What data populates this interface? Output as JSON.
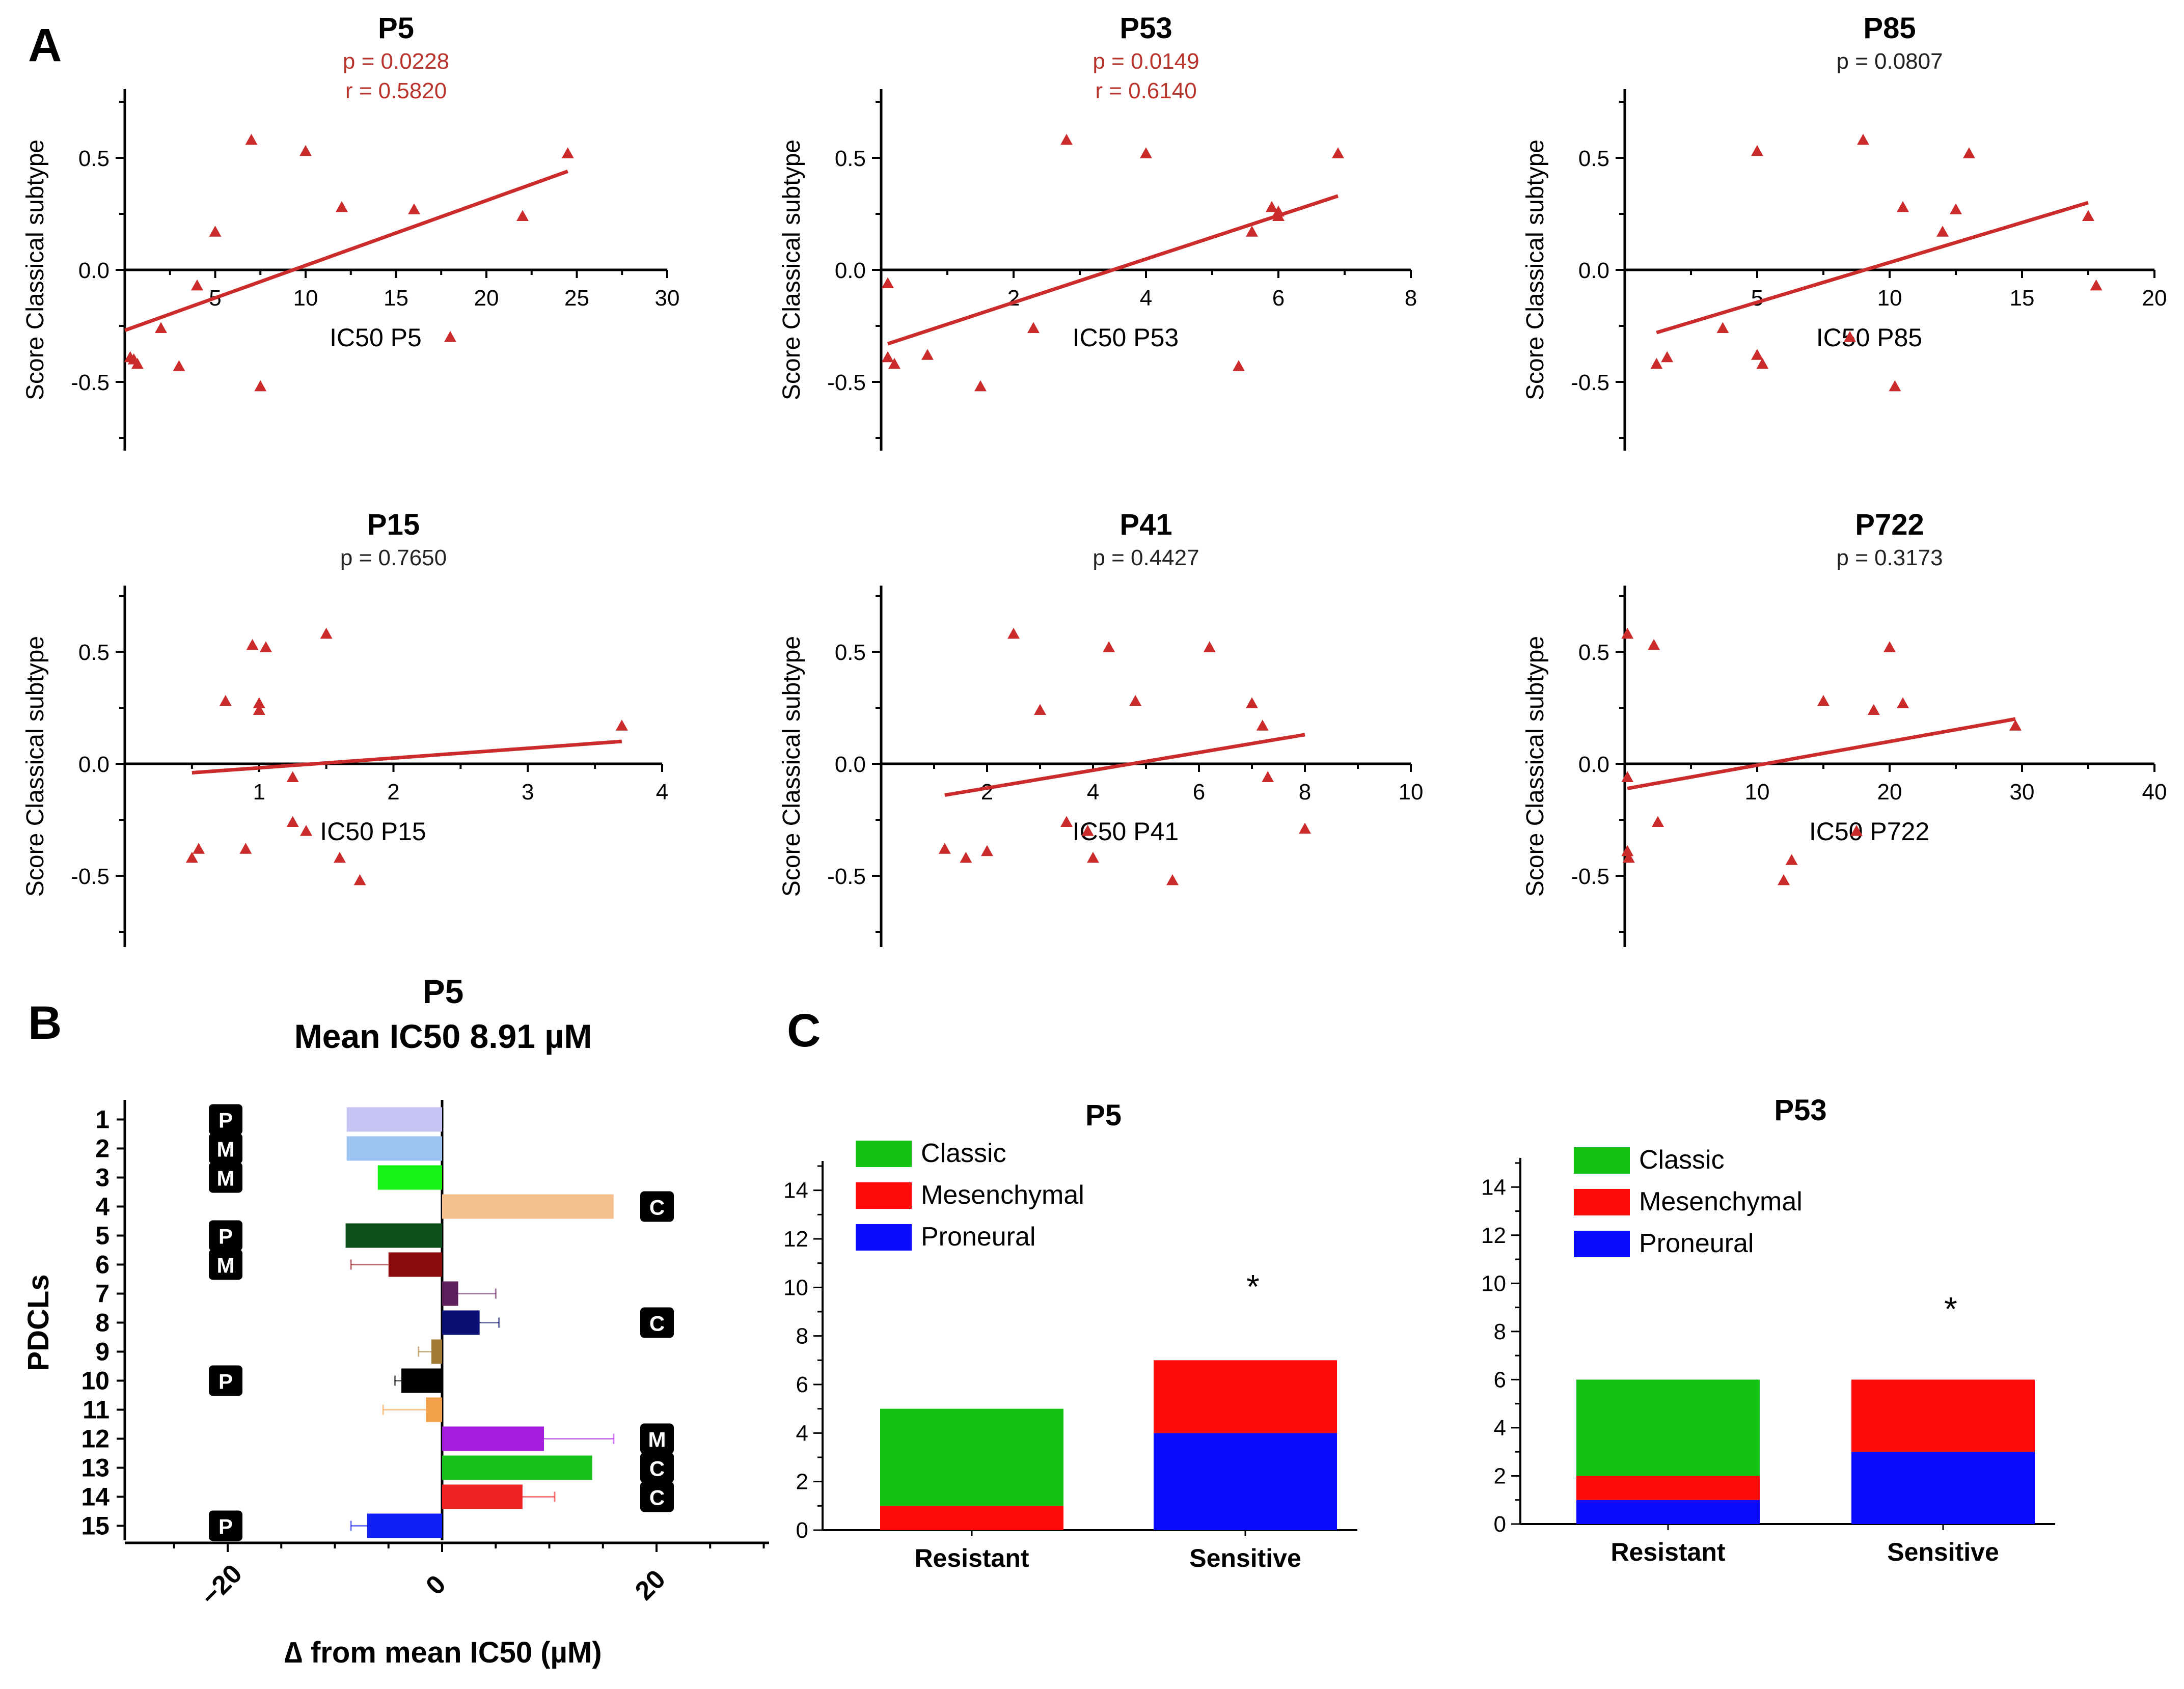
{
  "panel_labels": {
    "a": "A",
    "b": "B",
    "c": "C"
  },
  "colors": {
    "red": "#cc2b2b",
    "stat_red": "#b8342c",
    "stat_black": "#222222",
    "axis": "#000000",
    "classic": "#13c313",
    "mesenchymal": "#ff0a0a",
    "proneural": "#0a0aff"
  },
  "chart_data": [
    {
      "id": "a1",
      "type": "scatter",
      "title": "P5",
      "stats": [
        "p = 0.0228",
        "r = 0.5820"
      ],
      "stats_significant": true,
      "xlabel": "IC50 P5",
      "ylabel": "Score Classical subtype",
      "xlim": [
        0,
        30
      ],
      "ylim": [
        -0.8,
        0.8
      ],
      "xticks": [
        5,
        10,
        15,
        20,
        25,
        30
      ],
      "yticks": [
        0.5,
        0.0,
        -0.5
      ],
      "yticklabels": [
        "0.5",
        "0.0",
        "-0.5"
      ],
      "points": [
        [
          0.3,
          -0.39
        ],
        [
          0.5,
          -0.4
        ],
        [
          0.7,
          -0.42
        ],
        [
          2,
          -0.26
        ],
        [
          3,
          -0.43
        ],
        [
          4,
          -0.07
        ],
        [
          5,
          0.17
        ],
        [
          7,
          0.58
        ],
        [
          7.5,
          -0.52
        ],
        [
          10,
          0.53
        ],
        [
          12,
          0.28
        ],
        [
          16,
          0.27
        ],
        [
          18,
          -0.3
        ],
        [
          22,
          0.24
        ],
        [
          24.5,
          0.52
        ]
      ],
      "fit": [
        [
          0,
          -0.27
        ],
        [
          24.5,
          0.44
        ]
      ]
    },
    {
      "id": "a2",
      "type": "scatter",
      "title": "P53",
      "stats": [
        "p = 0.0149",
        "r = 0.6140"
      ],
      "stats_significant": true,
      "xlabel": "IC50 P53",
      "ylabel": "Score Classical subtype",
      "xlim": [
        0,
        8
      ],
      "ylim": [
        -0.8,
        0.8
      ],
      "xticks": [
        2,
        4,
        6,
        8
      ],
      "yticks": [
        0.5,
        0.0,
        -0.5
      ],
      "yticklabels": [
        "0.5",
        "0.0",
        "-0.5"
      ],
      "points": [
        [
          0.1,
          -0.06
        ],
        [
          0.1,
          -0.39
        ],
        [
          0.2,
          -0.42
        ],
        [
          0.7,
          -0.38
        ],
        [
          1.5,
          -0.52
        ],
        [
          2.3,
          -0.26
        ],
        [
          2.8,
          0.58
        ],
        [
          4,
          0.52
        ],
        [
          5.4,
          -0.43
        ],
        [
          5.6,
          0.17
        ],
        [
          5.9,
          0.28
        ],
        [
          6,
          0.26
        ],
        [
          6,
          0.24
        ],
        [
          6.9,
          0.52
        ]
      ],
      "fit": [
        [
          0.1,
          -0.33
        ],
        [
          6.9,
          0.33
        ]
      ]
    },
    {
      "id": "a3",
      "type": "scatter",
      "title": "P85",
      "stats": [
        "p = 0.0807"
      ],
      "stats_significant": false,
      "xlabel": "IC50 P85",
      "ylabel": "Score Classical subtype",
      "xlim": [
        0,
        20
      ],
      "ylim": [
        -0.8,
        0.8
      ],
      "xticks": [
        5,
        10,
        15,
        20
      ],
      "yticks": [
        0.5,
        0.0,
        -0.5
      ],
      "yticklabels": [
        "0.5",
        "0.0",
        "-0.5"
      ],
      "points": [
        [
          1.2,
          -0.42
        ],
        [
          1.6,
          -0.39
        ],
        [
          3.7,
          -0.26
        ],
        [
          5,
          0.53
        ],
        [
          5,
          -0.38
        ],
        [
          5.2,
          -0.42
        ],
        [
          8.5,
          -0.3
        ],
        [
          9,
          0.58
        ],
        [
          10.2,
          -0.52
        ],
        [
          10.5,
          0.28
        ],
        [
          12,
          0.17
        ],
        [
          12.5,
          0.27
        ],
        [
          13,
          0.52
        ],
        [
          17.5,
          0.24
        ],
        [
          17.8,
          -0.07
        ]
      ],
      "fit": [
        [
          1.2,
          -0.28
        ],
        [
          17.5,
          0.3
        ]
      ]
    },
    {
      "id": "a4",
      "type": "scatter",
      "title": "P15",
      "stats": [
        "p = 0.7650"
      ],
      "stats_significant": false,
      "xlabel": "IC50 P15",
      "ylabel": "Score Classical subtype",
      "xlim": [
        0,
        4
      ],
      "ylim": [
        -0.8,
        0.8
      ],
      "xticks": [
        1,
        2,
        3,
        4
      ],
      "yticks": [
        0.5,
        0.0,
        -0.5
      ],
      "yticklabels": [
        "0.5",
        "0.0",
        "-0.5"
      ],
      "points": [
        [
          0.5,
          -0.42
        ],
        [
          0.55,
          -0.38
        ],
        [
          0.75,
          0.28
        ],
        [
          0.9,
          -0.38
        ],
        [
          0.95,
          0.53
        ],
        [
          1,
          0.27
        ],
        [
          1,
          0.24
        ],
        [
          1.05,
          0.52
        ],
        [
          1.25,
          -0.06
        ],
        [
          1.25,
          -0.26
        ],
        [
          1.35,
          -0.3
        ],
        [
          1.5,
          0.58
        ],
        [
          1.6,
          -0.42
        ],
        [
          1.75,
          -0.52
        ],
        [
          3.7,
          0.17
        ]
      ],
      "fit": [
        [
          0.5,
          -0.04
        ],
        [
          3.7,
          0.1
        ]
      ]
    },
    {
      "id": "a5",
      "type": "scatter",
      "title": "P41",
      "stats": [
        "p = 0.4427"
      ],
      "stats_significant": false,
      "xlabel": "IC50 P41",
      "ylabel": "Score Classical subtype",
      "xlim": [
        0,
        10
      ],
      "ylim": [
        -0.8,
        0.8
      ],
      "xticks": [
        2,
        4,
        6,
        8,
        10
      ],
      "yticks": [
        0.5,
        0.0,
        -0.5
      ],
      "yticklabels": [
        "0.5",
        "0.0",
        "-0.5"
      ],
      "points": [
        [
          1.2,
          -0.38
        ],
        [
          1.6,
          -0.42
        ],
        [
          2,
          -0.39
        ],
        [
          2.5,
          0.58
        ],
        [
          3,
          0.24
        ],
        [
          3.5,
          -0.26
        ],
        [
          3.9,
          -0.3
        ],
        [
          4,
          -0.42
        ],
        [
          4.3,
          0.52
        ],
        [
          4.8,
          0.28
        ],
        [
          5.5,
          -0.52
        ],
        [
          6.2,
          0.52
        ],
        [
          7,
          0.27
        ],
        [
          7.2,
          0.17
        ],
        [
          7.3,
          -0.06
        ],
        [
          8,
          -0.29
        ]
      ],
      "fit": [
        [
          1.2,
          -0.14
        ],
        [
          8,
          0.13
        ]
      ]
    },
    {
      "id": "a6",
      "type": "scatter",
      "title": "P722",
      "stats": [
        "p = 0.3173"
      ],
      "stats_significant": false,
      "xlabel": "IC50 P722",
      "ylabel": "Score Classical subtype",
      "xlim": [
        0,
        40
      ],
      "ylim": [
        -0.8,
        0.8
      ],
      "xticks": [
        10,
        20,
        30,
        40
      ],
      "yticks": [
        0.5,
        0.0,
        -0.5
      ],
      "yticklabels": [
        "0.5",
        "0.0",
        "-0.5"
      ],
      "points": [
        [
          0.2,
          0.58
        ],
        [
          0.2,
          -0.06
        ],
        [
          0.2,
          -0.39
        ],
        [
          0.3,
          -0.42
        ],
        [
          2.2,
          0.53
        ],
        [
          2.5,
          -0.26
        ],
        [
          12,
          -0.52
        ],
        [
          12.6,
          -0.43
        ],
        [
          15,
          0.28
        ],
        [
          17.5,
          -0.3
        ],
        [
          18.8,
          0.24
        ],
        [
          20,
          0.52
        ],
        [
          21,
          0.27
        ],
        [
          29.5,
          0.17
        ]
      ],
      "fit": [
        [
          0.2,
          -0.11
        ],
        [
          29.5,
          0.2
        ]
      ]
    },
    {
      "id": "b",
      "type": "bar",
      "orientation": "horizontal",
      "title": "P5",
      "subtitle": "Mean IC50 8.91 µM",
      "xlabel": "∆ from mean IC50 (µM)",
      "ylabel": "PDCLs",
      "xlim": [
        -30,
        30
      ],
      "xticks": [
        -20,
        0,
        20
      ],
      "categories": [
        "1",
        "2",
        "3",
        "4",
        "5",
        "6",
        "7",
        "8",
        "9",
        "10",
        "11",
        "12",
        "13",
        "14",
        "15"
      ],
      "values": [
        -8.9,
        -8.9,
        -6,
        16,
        -9,
        -5,
        1.5,
        3.5,
        -1,
        -3.8,
        -1.5,
        9.5,
        14,
        7.5,
        -7
      ],
      "errors": [
        0,
        0,
        0,
        0,
        0,
        3.5,
        3.5,
        1.8,
        1.2,
        0.6,
        4,
        6.5,
        0,
        3,
        1.5
      ],
      "bar_colors": [
        "#c6c3f5",
        "#9cc3f1",
        "#14f314",
        "#f4c18e",
        "#0e4f1c",
        "#8b0a0a",
        "#601f5e",
        "#080e72",
        "#a37a35",
        "#000000",
        "#f2a04a",
        "#a51ee0",
        "#19c21b",
        "#ef2121",
        "#0d1df5"
      ],
      "subtype_tags": [
        "P",
        "M",
        "M",
        "C",
        "P",
        "M",
        "",
        "C",
        "",
        "P",
        "",
        "M",
        "C",
        "C",
        "P"
      ],
      "tag_side": [
        "left",
        "left",
        "left",
        "right",
        "left",
        "left",
        "",
        "right",
        "",
        "left",
        "",
        "right",
        "right",
        "right",
        "left"
      ]
    },
    {
      "id": "c1",
      "type": "bar",
      "stacked": true,
      "title": "P5",
      "categories": [
        "Resistant",
        "Sensitive"
      ],
      "series": [
        {
          "name": "Proneural",
          "values": [
            0,
            4
          ]
        },
        {
          "name": "Mesenchymal",
          "values": [
            1,
            3
          ]
        },
        {
          "name": "Classic",
          "values": [
            4,
            0
          ]
        }
      ],
      "legend": [
        "Classic",
        "Mesenchymal",
        "Proneural"
      ],
      "ylim": [
        0,
        15
      ],
      "yticks": [
        0,
        2,
        4,
        6,
        8,
        10,
        12,
        14
      ],
      "annotation": "*",
      "annotation_category": "Sensitive",
      "annotation_value": 10.4
    },
    {
      "id": "c2",
      "type": "bar",
      "stacked": true,
      "title": "P53",
      "categories": [
        "Resistant",
        "Sensitive"
      ],
      "series": [
        {
          "name": "Proneural",
          "values": [
            1,
            3
          ]
        },
        {
          "name": "Mesenchymal",
          "values": [
            1,
            3
          ]
        },
        {
          "name": "Classic",
          "values": [
            4,
            0
          ]
        }
      ],
      "legend": [
        "Classic",
        "Mesenchymal",
        "Proneural"
      ],
      "ylim": [
        0,
        15
      ],
      "yticks": [
        0,
        2,
        4,
        6,
        8,
        10,
        12,
        14
      ],
      "annotation": "*",
      "annotation_category": "Sensitive",
      "annotation_value": 9.3
    }
  ]
}
